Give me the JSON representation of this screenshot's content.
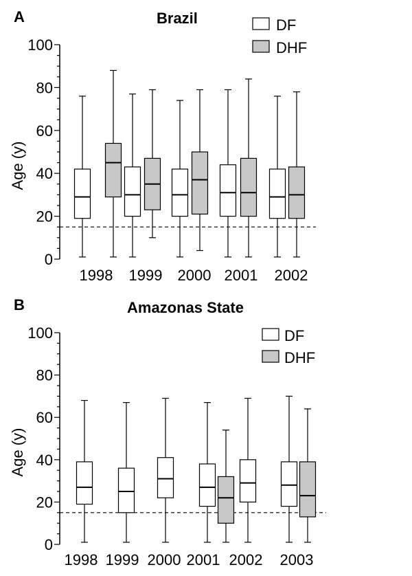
{
  "chart_data": [
    {
      "panel": "A",
      "type": "box",
      "title": "Brazil",
      "xlabel": "",
      "ylabel": "Age (y)",
      "ylim": [
        0,
        100
      ],
      "yticks": [
        0,
        20,
        40,
        60,
        80,
        100
      ],
      "reference_line_y": 15,
      "categories": [
        "1998",
        "1999",
        "2000",
        "2001",
        "2002"
      ],
      "legend": [
        {
          "label": "DF",
          "color": "#ffffff"
        },
        {
          "label": "DHF",
          "color": "#c8c8c8"
        }
      ],
      "series": [
        {
          "name": "DF",
          "color": "#ffffff",
          "boxes": [
            {
              "min": 1,
              "q1": 19,
              "median": 29,
              "q3": 42,
              "max": 76
            },
            {
              "min": 1,
              "q1": 20,
              "median": 30,
              "q3": 43,
              "max": 77
            },
            {
              "min": 1,
              "q1": 20,
              "median": 30,
              "q3": 42,
              "max": 74
            },
            {
              "min": 1,
              "q1": 20,
              "median": 31,
              "q3": 44,
              "max": 79
            },
            {
              "min": 1,
              "q1": 19,
              "median": 29,
              "q3": 42,
              "max": 76
            }
          ]
        },
        {
          "name": "DHF",
          "color": "#c8c8c8",
          "boxes": [
            {
              "min": 1,
              "q1": 29,
              "median": 45,
              "q3": 54,
              "max": 88
            },
            {
              "min": 10,
              "q1": 23,
              "median": 35,
              "q3": 47,
              "max": 79
            },
            {
              "min": 4,
              "q1": 21,
              "median": 37,
              "q3": 50,
              "max": 79
            },
            {
              "min": 1,
              "q1": 20,
              "median": 31,
              "q3": 47,
              "max": 84
            },
            {
              "min": 1,
              "q1": 19,
              "median": 30,
              "q3": 43,
              "max": 78
            }
          ]
        }
      ]
    },
    {
      "panel": "B",
      "type": "box",
      "title": "Amazonas State",
      "xlabel": "",
      "ylabel": "Age (y)",
      "ylim": [
        0,
        100
      ],
      "yticks": [
        0,
        20,
        40,
        60,
        80,
        100
      ],
      "reference_line_y": 15,
      "categories": [
        "1998",
        "1999",
        "2000",
        "2001",
        "2002",
        "2003"
      ],
      "legend": [
        {
          "label": "DF",
          "color": "#ffffff"
        },
        {
          "label": "DHF",
          "color": "#c8c8c8"
        }
      ],
      "series": [
        {
          "name": "DF",
          "color": "#ffffff",
          "boxes": [
            {
              "min": 1,
              "q1": 19,
              "median": 27,
              "q3": 39,
              "max": 68
            },
            {
              "min": 1,
              "q1": 15,
              "median": 25,
              "q3": 36,
              "max": 67
            },
            {
              "min": 1,
              "q1": 22,
              "median": 31,
              "q3": 41,
              "max": 69
            },
            {
              "min": 1,
              "q1": 18,
              "median": 27,
              "q3": 38,
              "max": 67
            },
            {
              "min": 1,
              "q1": 20,
              "median": 29,
              "q3": 40,
              "max": 69
            },
            {
              "min": 1,
              "q1": 18,
              "median": 28,
              "q3": 39,
              "max": 70
            }
          ]
        },
        {
          "name": "DHF",
          "color": "#c8c8c8",
          "boxes": [
            null,
            null,
            null,
            {
              "min": 1,
              "q1": 10,
              "median": 22,
              "q3": 32,
              "max": 54
            },
            null,
            {
              "min": 1,
              "q1": 13,
              "median": 23,
              "q3": 39,
              "max": 64
            }
          ]
        }
      ]
    }
  ]
}
